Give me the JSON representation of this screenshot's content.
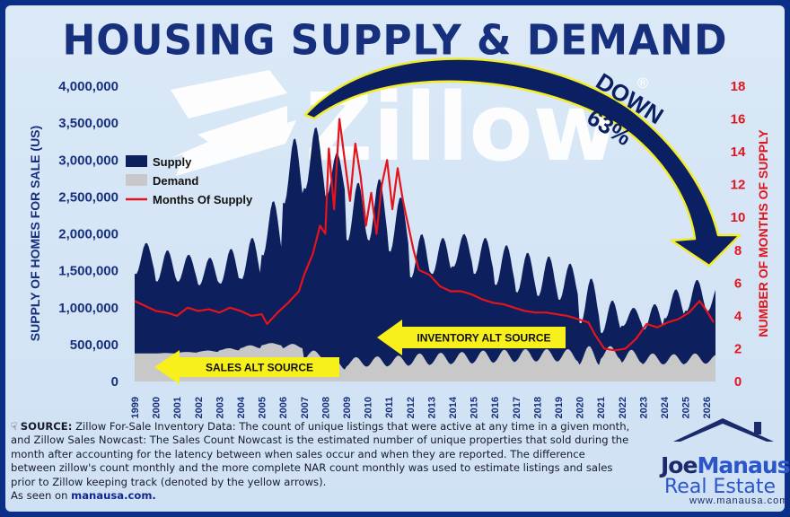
{
  "title": "HOUSING SUPPLY & DEMAND",
  "watermark": "Zillow",
  "watermark_mark": "®",
  "colors": {
    "supply": "#0d1f5c",
    "demand": "#c8c8c8",
    "months": "#e3141b",
    "accent": "#1b2a86",
    "arrow_yellow": "#f7f01b"
  },
  "annotations": {
    "down_label": "DOWN",
    "down_pct": "63%",
    "inventory_alt": "INVENTORY ALT SOURCE",
    "sales_alt": "SALES ALT SOURCE"
  },
  "legend": [
    {
      "label": "Supply",
      "color": "#0d1f5c"
    },
    {
      "label": "Demand",
      "color": "#c8c8c8"
    },
    {
      "label": "Months Of Supply",
      "color": "#e3141b"
    }
  ],
  "source": {
    "icon": "pointing-hand-icon",
    "label": "SOURCE:",
    "text": "Zillow For-Sale Inventory Data: The count of unique listings that were active at any time in a given month, and Zillow Sales Nowcast: The Sales Count Nowcast is the estimated number of unique properties that sold during the month after accounting for the latency between when sales occur and when they are reported. The difference between zillow's count monthly and the more complete NAR count monthly was used to estimate listings and sales prior to Zillow keeping track (denoted by the yellow arrows).",
    "seen_prefix": "As seen on",
    "seen_link": "manausa.com."
  },
  "logo": {
    "first": "Joe",
    "second": "Manausa",
    "line2": "Real Estate",
    "url": "www.manausa.com"
  },
  "chart_data": {
    "type": "area",
    "x_start": "1999-01",
    "x_end": "2026-06",
    "x_ticks": [
      "1999",
      "2000",
      "2001",
      "2002",
      "2003",
      "2004",
      "2005",
      "2006",
      "2007",
      "2008",
      "2009",
      "2010",
      "2011",
      "2012",
      "2013",
      "2014",
      "2015",
      "2016",
      "2017",
      "2018",
      "2019",
      "2020",
      "2021",
      "2022",
      "2023",
      "2024",
      "2025",
      "2026"
    ],
    "y_left": {
      "label": "SUPPLY OF HOMES FOR SALE (US)",
      "range": [
        0,
        4000000
      ],
      "ticks": [
        "0",
        "500,000",
        "1,000,000",
        "1,500,000",
        "2,000,000",
        "2,500,000",
        "3,000,000",
        "3,500,000",
        "4,000,000"
      ]
    },
    "y_right": {
      "label": "NUMBER OF MONTHS OF SUPPLY",
      "range": [
        0,
        18
      ],
      "ticks": [
        "0",
        "2",
        "4",
        "6",
        "8",
        "10",
        "12",
        "14",
        "16",
        "18"
      ]
    },
    "series": [
      {
        "name": "Supply",
        "axis": "left",
        "type": "area",
        "annual": [
          {
            "year": 1999,
            "low": 1450000,
            "high": 1880000
          },
          {
            "year": 2000,
            "low": 1350000,
            "high": 1780000
          },
          {
            "year": 2001,
            "low": 1350000,
            "high": 1720000
          },
          {
            "year": 2002,
            "low": 1300000,
            "high": 1680000
          },
          {
            "year": 2003,
            "low": 1320000,
            "high": 1800000
          },
          {
            "year": 2004,
            "low": 1380000,
            "high": 1950000
          },
          {
            "year": 2005,
            "low": 1700000,
            "high": 2450000
          },
          {
            "year": 2006,
            "low": 2400000,
            "high": 3300000
          },
          {
            "year": 2007,
            "low": 2600000,
            "high": 3450000
          },
          {
            "year": 2008,
            "low": 2500000,
            "high": 3100000
          },
          {
            "year": 2009,
            "low": 1900000,
            "high": 2700000
          },
          {
            "year": 2010,
            "low": 1900000,
            "high": 2750000
          },
          {
            "year": 2011,
            "low": 1750000,
            "high": 2500000
          },
          {
            "year": 2012,
            "low": 1400000,
            "high": 2000000
          },
          {
            "year": 2013,
            "low": 1450000,
            "high": 1950000
          },
          {
            "year": 2014,
            "low": 1550000,
            "high": 2000000
          },
          {
            "year": 2015,
            "low": 1450000,
            "high": 1950000
          },
          {
            "year": 2016,
            "low": 1300000,
            "high": 1850000
          },
          {
            "year": 2017,
            "low": 1200000,
            "high": 1750000
          },
          {
            "year": 2018,
            "low": 1150000,
            "high": 1700000
          },
          {
            "year": 2019,
            "low": 1100000,
            "high": 1600000
          },
          {
            "year": 2020,
            "low": 780000,
            "high": 1400000
          },
          {
            "year": 2021,
            "low": 650000,
            "high": 1100000
          },
          {
            "year": 2022,
            "low": 750000,
            "high": 1000000
          },
          {
            "year": 2023,
            "low": 700000,
            "high": 1050000
          },
          {
            "year": 2024,
            "low": 850000,
            "high": 1250000
          },
          {
            "year": 2025,
            "low": 950000,
            "high": 1380000
          },
          {
            "year": 2026,
            "low": 950000,
            "high": 1300000
          }
        ]
      },
      {
        "name": "Demand",
        "axis": "left",
        "type": "area",
        "annual": [
          {
            "year": 1999,
            "low": 380000,
            "high": 380000
          },
          {
            "year": 2000,
            "low": 380000,
            "high": 385000
          },
          {
            "year": 2001,
            "low": 390000,
            "high": 400000
          },
          {
            "year": 2002,
            "low": 400000,
            "high": 420000
          },
          {
            "year": 2003,
            "low": 420000,
            "high": 450000
          },
          {
            "year": 2004,
            "low": 450000,
            "high": 490000
          },
          {
            "year": 2005,
            "low": 490000,
            "high": 520000
          },
          {
            "year": 2006,
            "low": 450000,
            "high": 510000
          },
          {
            "year": 2007,
            "low": 300000,
            "high": 420000
          },
          {
            "year": 2008,
            "low": 160000,
            "high": 300000
          },
          {
            "year": 2009,
            "low": 200000,
            "high": 330000
          },
          {
            "year": 2010,
            "low": 200000,
            "high": 340000
          },
          {
            "year": 2011,
            "low": 210000,
            "high": 350000
          },
          {
            "year": 2012,
            "low": 220000,
            "high": 380000
          },
          {
            "year": 2013,
            "low": 230000,
            "high": 390000
          },
          {
            "year": 2014,
            "low": 240000,
            "high": 400000
          },
          {
            "year": 2015,
            "low": 250000,
            "high": 420000
          },
          {
            "year": 2016,
            "low": 260000,
            "high": 430000
          },
          {
            "year": 2017,
            "low": 270000,
            "high": 440000
          },
          {
            "year": 2018,
            "low": 270000,
            "high": 440000
          },
          {
            "year": 2019,
            "low": 270000,
            "high": 440000
          },
          {
            "year": 2020,
            "low": 220000,
            "high": 480000
          },
          {
            "year": 2021,
            "low": 300000,
            "high": 480000
          },
          {
            "year": 2022,
            "low": 250000,
            "high": 430000
          },
          {
            "year": 2023,
            "low": 230000,
            "high": 380000
          },
          {
            "year": 2024,
            "low": 230000,
            "high": 370000
          },
          {
            "year": 2025,
            "low": 240000,
            "high": 380000
          },
          {
            "year": 2026,
            "low": 240000,
            "high": 360000
          }
        ]
      },
      {
        "name": "Months Of Supply",
        "axis": "right",
        "type": "line",
        "points": [
          [
            "1999-01",
            4.9
          ],
          [
            "1999-07",
            4.6
          ],
          [
            "2000-01",
            4.3
          ],
          [
            "2000-07",
            4.2
          ],
          [
            "2001-01",
            4.0
          ],
          [
            "2001-07",
            4.5
          ],
          [
            "2002-01",
            4.3
          ],
          [
            "2002-07",
            4.4
          ],
          [
            "2003-01",
            4.2
          ],
          [
            "2003-07",
            4.5
          ],
          [
            "2004-01",
            4.3
          ],
          [
            "2004-07",
            4.0
          ],
          [
            "2005-01",
            4.1
          ],
          [
            "2005-04",
            3.5
          ],
          [
            "2005-10",
            4.2
          ],
          [
            "2006-04",
            4.8
          ],
          [
            "2006-10",
            5.5
          ],
          [
            "2007-01",
            6.5
          ],
          [
            "2007-06",
            7.8
          ],
          [
            "2007-10",
            9.5
          ],
          [
            "2008-01",
            9.0
          ],
          [
            "2008-03",
            14.2
          ],
          [
            "2008-06",
            10.5
          ],
          [
            "2008-09",
            16.0
          ],
          [
            "2008-12",
            13.5
          ],
          [
            "2009-03",
            11.0
          ],
          [
            "2009-06",
            14.5
          ],
          [
            "2009-09",
            12.5
          ],
          [
            "2009-12",
            9.5
          ],
          [
            "2010-03",
            11.5
          ],
          [
            "2010-06",
            9.0
          ],
          [
            "2010-09",
            12.0
          ],
          [
            "2010-12",
            13.5
          ],
          [
            "2011-03",
            10.5
          ],
          [
            "2011-06",
            13.0
          ],
          [
            "2011-09",
            11.0
          ],
          [
            "2011-12",
            9.5
          ],
          [
            "2012-03",
            8.0
          ],
          [
            "2012-06",
            6.8
          ],
          [
            "2012-12",
            6.5
          ],
          [
            "2013-06",
            5.8
          ],
          [
            "2013-12",
            5.5
          ],
          [
            "2014-06",
            5.5
          ],
          [
            "2014-12",
            5.3
          ],
          [
            "2015-06",
            5.0
          ],
          [
            "2015-12",
            4.8
          ],
          [
            "2016-06",
            4.7
          ],
          [
            "2016-12",
            4.5
          ],
          [
            "2017-06",
            4.3
          ],
          [
            "2017-12",
            4.2
          ],
          [
            "2018-06",
            4.2
          ],
          [
            "2018-12",
            4.1
          ],
          [
            "2019-06",
            4.0
          ],
          [
            "2019-12",
            3.8
          ],
          [
            "2020-06",
            3.6
          ],
          [
            "2020-10",
            2.8
          ],
          [
            "2021-03",
            2.0
          ],
          [
            "2021-09",
            1.9
          ],
          [
            "2022-03",
            2.0
          ],
          [
            "2022-09",
            2.6
          ],
          [
            "2023-03",
            3.5
          ],
          [
            "2023-09",
            3.3
          ],
          [
            "2024-03",
            3.6
          ],
          [
            "2024-09",
            3.8
          ],
          [
            "2025-03",
            4.2
          ],
          [
            "2025-09",
            4.9
          ],
          [
            "2026-01",
            4.3
          ],
          [
            "2026-05",
            3.6
          ]
        ]
      }
    ]
  }
}
